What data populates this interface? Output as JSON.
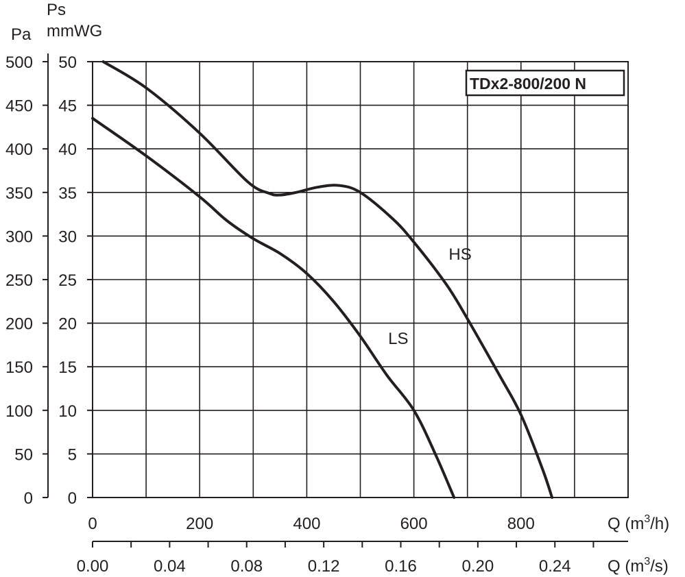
{
  "chart_data": {
    "type": "line",
    "title": "TDx2-800/200 N",
    "y_axes": [
      {
        "name": "Pa",
        "ticks": [
          "0",
          "50",
          "100",
          "150",
          "200",
          "250",
          "300",
          "350",
          "400",
          "450",
          "500"
        ],
        "ylim": [
          0,
          500
        ]
      },
      {
        "name_line1": "Ps",
        "name_line2": "mmWG",
        "ticks": [
          "0",
          "5",
          "10",
          "15",
          "20",
          "25",
          "30",
          "35",
          "40",
          "45",
          "50"
        ],
        "ylim": [
          0,
          50
        ]
      }
    ],
    "x_axes": [
      {
        "name": "Q (m",
        "superscript": "3",
        "unit_suffix": "/h)",
        "ticks": [
          "0",
          "200",
          "400",
          "600",
          "800"
        ],
        "tick_values": [
          0,
          200,
          400,
          600,
          800
        ],
        "xlim": [
          0,
          1000
        ]
      },
      {
        "name": "Q (m",
        "superscript": "3",
        "unit_suffix": "/s)",
        "ticks": [
          "0.00",
          "0.04",
          "0.08",
          "0.12",
          "0.16",
          "0.20",
          "0.24"
        ],
        "tick_values": [
          0.0,
          0.04,
          0.08,
          0.12,
          0.16,
          0.2,
          0.24
        ],
        "xlim": [
          0,
          0.278
        ]
      }
    ],
    "grid": true,
    "series": [
      {
        "name": "HS",
        "label_at": {
          "x": 665,
          "y": 280
        },
        "x": [
          20,
          100,
          200,
          290,
          330,
          350,
          380,
          420,
          460,
          500,
          560,
          600,
          660,
          700,
          760,
          800,
          840,
          858
        ],
        "y": [
          500,
          470,
          418,
          362,
          349,
          347,
          350,
          356,
          358,
          350,
          320,
          293,
          245,
          205,
          140,
          95,
          33,
          0
        ]
      },
      {
        "name": "LS",
        "label_at": {
          "x": 552,
          "y": 183
        },
        "x": [
          0,
          100,
          200,
          250,
          300,
          350,
          400,
          450,
          500,
          550,
          600,
          640,
          675
        ],
        "y": [
          435,
          392,
          345,
          318,
          297,
          280,
          257,
          225,
          185,
          140,
          100,
          50,
          0
        ]
      }
    ]
  }
}
